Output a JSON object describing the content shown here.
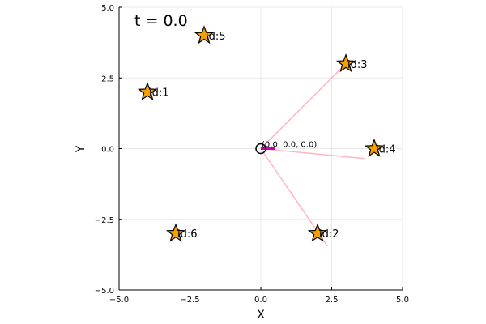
{
  "chart_data": {
    "type": "scatter",
    "title": "",
    "xlabel": "X",
    "ylabel": "Y",
    "xlim": [
      -5,
      5
    ],
    "ylim": [
      -5,
      5
    ],
    "xticks": [
      -5,
      -2.5,
      0,
      2.5,
      5
    ],
    "yticks": [
      -5,
      -2.5,
      0,
      2.5,
      5
    ],
    "xtick_labels": [
      "−5.0",
      "−2.5",
      "0.0",
      "2.5",
      "5.0"
    ],
    "ytick_labels": [
      "−5.0",
      "−2.5",
      "0.0",
      "2.5",
      "5.0"
    ],
    "grid": true,
    "annotation": "t = 0.0",
    "landmarks": [
      {
        "label": "id:1",
        "x": -4,
        "y": 2
      },
      {
        "label": "id:2",
        "x": 2,
        "y": -3
      },
      {
        "label": "id:3",
        "x": 3,
        "y": 3
      },
      {
        "label": "id:4",
        "x": 4,
        "y": 0
      },
      {
        "label": "id:5",
        "x": -2,
        "y": 4
      },
      {
        "label": "id:6",
        "x": -3,
        "y": -3
      }
    ],
    "robot": {
      "label": "(0.0, 0.0, 0.0)",
      "x": 0,
      "y": 0,
      "theta": 0,
      "heading_length": 0.5
    },
    "observation_lines": [
      {
        "to_x": 3.0,
        "to_y": 3.0
      },
      {
        "to_x": 3.65,
        "to_y": -0.35
      },
      {
        "to_x": 2.35,
        "to_y": -3.45
      }
    ],
    "colors": {
      "landmark_fill": "#f5a000",
      "landmark_edge": "#000000",
      "robot_edge": "#000000",
      "heading": "#cc00aa",
      "observation": "#ffb6c1",
      "grid": "#e8e8e8",
      "axis": "#000000"
    }
  }
}
